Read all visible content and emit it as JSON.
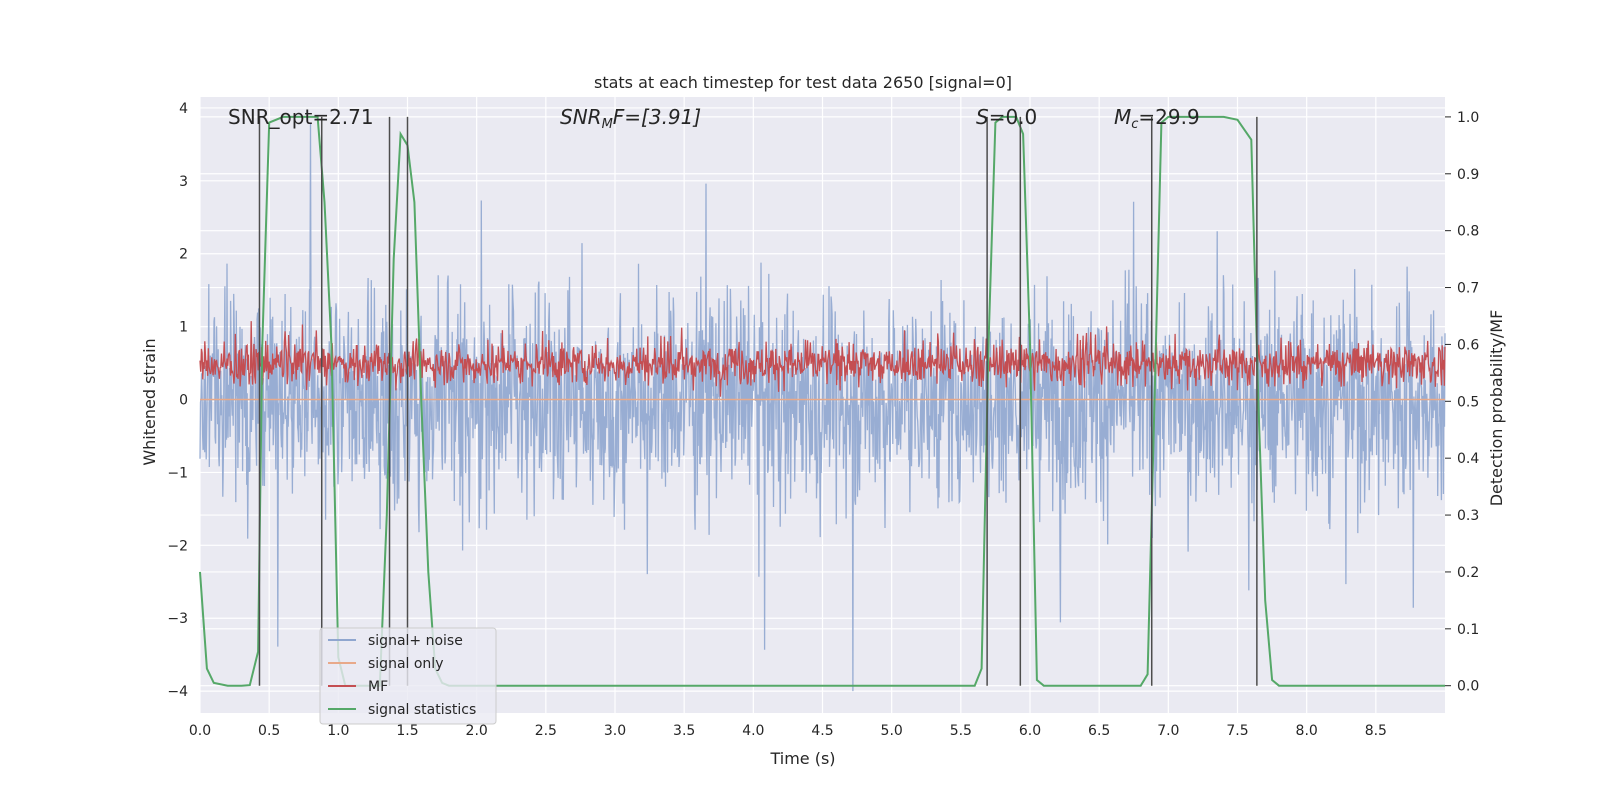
{
  "chart_data": {
    "type": "line",
    "title": "stats at each timestep for test data 2650 [signal=0]",
    "xlabel": "Time (s)",
    "ylabel": "Whitened strain",
    "y2label": "Detection probability/MF",
    "xlim": [
      0,
      9
    ],
    "ylim": [
      -4.3,
      4.15
    ],
    "y2lim": [
      -0.048,
      1.035
    ],
    "x_ticks": [
      "0.0",
      "0.5",
      "1.0",
      "1.5",
      "2.0",
      "2.5",
      "3.0",
      "3.5",
      "4.0",
      "4.5",
      "5.0",
      "5.5",
      "6.0",
      "6.5",
      "7.0",
      "7.5",
      "8.0",
      "8.5"
    ],
    "y_ticks": [
      "−4",
      "−3",
      "−2",
      "−1",
      "0",
      "1",
      "2",
      "3",
      "4"
    ],
    "y2_ticks": [
      "0.0",
      "0.1",
      "0.2",
      "0.3",
      "0.4",
      "0.5",
      "0.6",
      "0.7",
      "0.8",
      "0.9",
      "1.0"
    ],
    "grid": true,
    "legend_position": "lower-left",
    "legend": [
      {
        "label": "signal+ noise",
        "color": "#8fa6cf"
      },
      {
        "label": "signal only",
        "color": "#e8a98a"
      },
      {
        "label": "MF",
        "color": "#c44e52"
      },
      {
        "label": "signal statistics",
        "color": "#55a868"
      }
    ],
    "annotations": {
      "snr_opt": "SNR_opt=2.71",
      "snr_mf_main": "SNR",
      "snr_mf_sub": "M",
      "snr_mf_tail": "F=[3.91]",
      "s_main": "S",
      "s_tail": "=0.0",
      "mc_main": "M",
      "mc_sub": "c",
      "mc_tail": "=29.9"
    },
    "colors": {
      "background": "#eaeaf2",
      "grid": "#ffffff",
      "noise": "#8fa6cf",
      "signal": "#e8a98a",
      "mf": "#c44e52",
      "stats": "#55a868",
      "vlines": "#4d4d4d"
    },
    "noise_series": {
      "name": "signal+ noise",
      "description_range": [
        -4.0,
        3.8
      ],
      "typical_amplitude": 1.1
    },
    "mf_series": {
      "name": "MF",
      "y2_range": [
        0.5,
        0.63
      ]
    },
    "signal_statistics": {
      "name": "signal statistics",
      "x": [
        0.0,
        0.05,
        0.1,
        0.2,
        0.3,
        0.36,
        0.42,
        0.45,
        0.5,
        0.6,
        0.7,
        0.85,
        0.9,
        0.95,
        1.0,
        1.05,
        1.2,
        1.3,
        1.35,
        1.4,
        1.45,
        1.5,
        1.55,
        1.6,
        1.65,
        1.7,
        1.75,
        1.8,
        2.0,
        5.6,
        5.65,
        5.7,
        5.75,
        5.8,
        5.9,
        5.95,
        6.0,
        6.05,
        6.1,
        6.2,
        6.8,
        6.85,
        6.9,
        6.95,
        7.0,
        7.4,
        7.5,
        7.6,
        7.65,
        7.7,
        7.75,
        7.8,
        8.0,
        9.0
      ],
      "y": [
        0.2,
        0.03,
        0.005,
        0.0,
        0.0,
        0.001,
        0.06,
        0.6,
        0.99,
        1.0,
        1.0,
        1.0,
        0.85,
        0.6,
        0.05,
        0.0,
        0.0,
        0.0,
        0.3,
        0.75,
        0.97,
        0.95,
        0.85,
        0.5,
        0.2,
        0.03,
        0.005,
        0.0,
        0.0,
        0.0,
        0.03,
        0.6,
        0.99,
        1.0,
        1.0,
        0.97,
        0.6,
        0.01,
        0.0,
        0.0,
        0.0,
        0.02,
        0.5,
        0.99,
        1.0,
        1.0,
        0.995,
        0.96,
        0.5,
        0.15,
        0.01,
        0.0,
        0.0,
        0.0
      ]
    },
    "vertical_lines_x": [
      0.43,
      0.88,
      1.37,
      1.5,
      5.69,
      5.93,
      6.88,
      7.64
    ]
  }
}
